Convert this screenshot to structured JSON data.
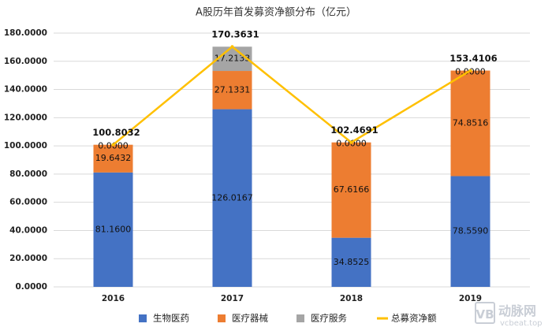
{
  "chart_data": {
    "type": "bar",
    "title": "A股历年首发募资净额分布（亿元）",
    "categories": [
      "2016",
      "2017",
      "2018",
      "2019"
    ],
    "series": [
      {
        "name": "生物医药",
        "color": "#4472C4",
        "values": [
          81.16,
          126.0167,
          34.8525,
          78.559
        ],
        "labels": [
          "81.1600",
          "126.0167",
          "34.8525",
          "78.5590"
        ]
      },
      {
        "name": "医疗器械",
        "color": "#ED7D31",
        "values": [
          19.6432,
          27.1331,
          67.6166,
          74.8516
        ],
        "labels": [
          "19.6432",
          "27.1331",
          "67.6166",
          "74.8516"
        ]
      },
      {
        "name": "医疗服务",
        "color": "#A5A5A5",
        "values": [
          0.0,
          17.2133,
          0.0,
          0.0
        ],
        "labels": [
          "0.0000",
          "17.2133",
          "0.0000",
          "0.0000"
        ]
      },
      {
        "name": "总募资净额",
        "type": "line",
        "color": "#FFC000",
        "values": [
          100.8032,
          170.3631,
          102.4691,
          153.4106
        ],
        "labels": [
          "100.8032",
          "170.3631",
          "102.4691",
          "153.4106"
        ]
      }
    ],
    "ylim": [
      0,
      180
    ],
    "yticks": [
      "0.0000",
      "20.0000",
      "40.0000",
      "60.0000",
      "80.0000",
      "100.0000",
      "120.0000",
      "140.0000",
      "160.0000",
      "180.0000"
    ],
    "grid": true,
    "legend": "bottom",
    "xlabel": "",
    "ylabel": ""
  },
  "watermark": {
    "text": "动脉网",
    "subtext": "vcbeat.top"
  }
}
